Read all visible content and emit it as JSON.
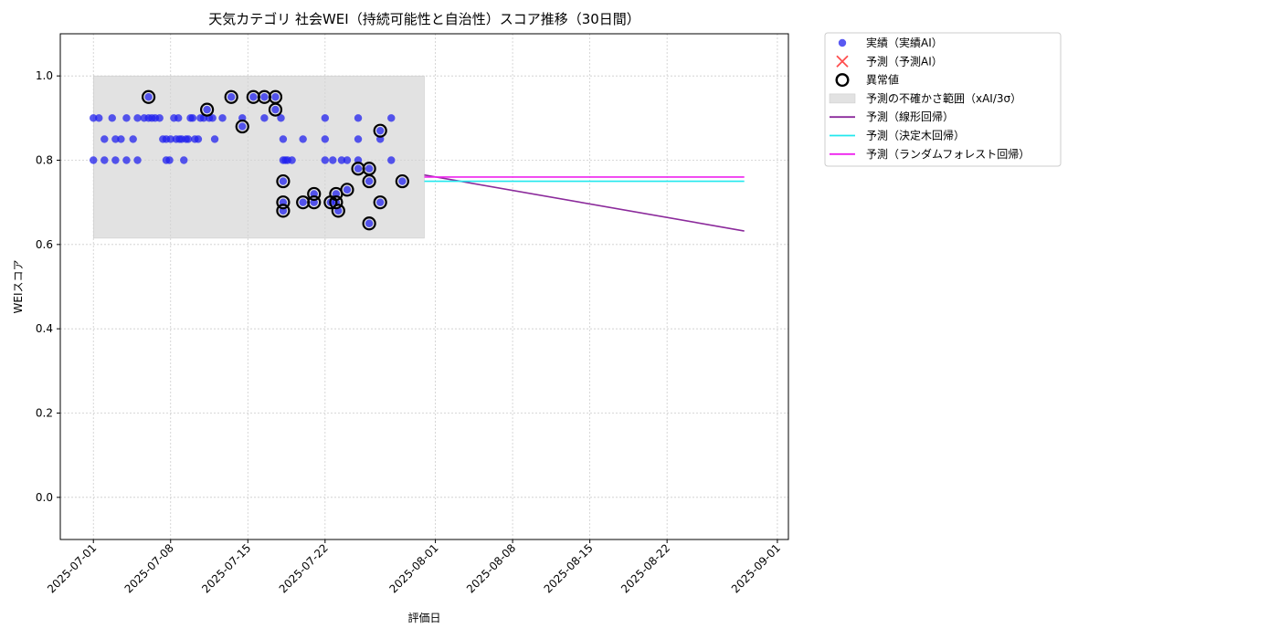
{
  "chart_data": {
    "type": "scatter",
    "title": "天気カテゴリ 社会WEI（持続可能性と自治性）スコア推移（30日間）",
    "xlabel": "評価日",
    "ylabel": "WEIスコア",
    "xlim": [
      "2025-06-28",
      "2025-09-02"
    ],
    "ylim": [
      -0.1,
      1.1
    ],
    "grid": true,
    "legend_position": "outside-right",
    "xticks": [
      "2025-07-01",
      "2025-07-08",
      "2025-07-15",
      "2025-07-22",
      "2025-08-01",
      "2025-08-08",
      "2025-08-15",
      "2025-08-22",
      "2025-09-01"
    ],
    "yticks": [
      0.0,
      0.2,
      0.4,
      0.6,
      0.8,
      1.0
    ],
    "uncertainty_band": {
      "x_start": "2025-07-01",
      "x_end": "2025-07-31",
      "y_low": 0.615,
      "y_high": 1.0,
      "color": "#d3d3d3"
    },
    "series": [
      {
        "name": "実績（実績AI）",
        "type": "scatter",
        "color": "#2222ee",
        "points": [
          [
            "2025-07-01",
            0.8
          ],
          [
            "2025-07-01",
            0.9
          ],
          [
            "2025-07-01.5",
            0.9
          ],
          [
            "2025-07-02",
            0.85
          ],
          [
            "2025-07-02",
            0.8
          ],
          [
            "2025-07-02.7",
            0.9
          ],
          [
            "2025-07-03",
            0.8
          ],
          [
            "2025-07-03",
            0.85
          ],
          [
            "2025-07-03.5",
            0.85
          ],
          [
            "2025-07-04",
            0.9
          ],
          [
            "2025-07-04",
            0.8
          ],
          [
            "2025-07-04.6",
            0.85
          ],
          [
            "2025-07-05",
            0.8
          ],
          [
            "2025-07-05",
            0.9
          ],
          [
            "2025-07-05.6",
            0.9
          ],
          [
            "2025-07-06",
            0.9
          ],
          [
            "2025-07-06",
            0.95
          ],
          [
            "2025-07-06.3",
            0.9
          ],
          [
            "2025-07-06.6",
            0.9
          ],
          [
            "2025-07-07",
            0.9
          ],
          [
            "2025-07-07.3",
            0.85
          ],
          [
            "2025-07-07.6",
            0.85
          ],
          [
            "2025-07-07.6",
            0.8
          ],
          [
            "2025-07-07.9",
            0.8
          ],
          [
            "2025-07-08",
            0.85
          ],
          [
            "2025-07-08.3",
            0.9
          ],
          [
            "2025-07-08.5",
            0.85
          ],
          [
            "2025-07-08.7",
            0.9
          ],
          [
            "2025-07-08.8",
            0.85
          ],
          [
            "2025-07-09",
            0.85
          ],
          [
            "2025-07-09.2",
            0.8
          ],
          [
            "2025-07-09.4",
            0.85
          ],
          [
            "2025-07-09.6",
            0.85
          ],
          [
            "2025-07-09.8",
            0.9
          ],
          [
            "2025-07-10",
            0.9
          ],
          [
            "2025-07-10.2",
            0.85
          ],
          [
            "2025-07-10.5",
            0.85
          ],
          [
            "2025-07-10.7",
            0.9
          ],
          [
            "2025-07-11",
            0.9
          ],
          [
            "2025-07-11.3",
            0.92
          ],
          [
            "2025-07-11.5",
            0.9
          ],
          [
            "2025-07-11.8",
            0.9
          ],
          [
            "2025-07-12",
            0.85
          ],
          [
            "2025-07-12.7",
            0.9
          ],
          [
            "2025-07-13.5",
            0.95
          ],
          [
            "2025-07-14.5",
            0.9
          ],
          [
            "2025-07-14.5",
            0.88
          ],
          [
            "2025-07-15.5",
            0.95
          ],
          [
            "2025-07-16.5",
            0.95
          ],
          [
            "2025-07-16.5",
            0.9
          ],
          [
            "2025-07-17.5",
            0.95
          ],
          [
            "2025-07-17.5",
            0.92
          ],
          [
            "2025-07-18",
            0.9
          ],
          [
            "2025-07-18.2",
            0.8
          ],
          [
            "2025-07-18.2",
            0.85
          ],
          [
            "2025-07-18.2",
            0.75
          ],
          [
            "2025-07-18.2",
            0.7
          ],
          [
            "2025-07-18.2",
            0.68
          ],
          [
            "2025-07-18.4",
            0.8
          ],
          [
            "2025-07-18.6",
            0.8
          ],
          [
            "2025-07-19",
            0.8
          ],
          [
            "2025-07-20",
            0.85
          ],
          [
            "2025-07-20",
            0.7
          ],
          [
            "2025-07-21",
            0.72
          ],
          [
            "2025-07-21",
            0.7
          ],
          [
            "2025-07-22",
            0.9
          ],
          [
            "2025-07-22",
            0.85
          ],
          [
            "2025-07-22",
            0.8
          ],
          [
            "2025-07-22.5",
            0.7
          ],
          [
            "2025-07-22.7",
            0.8
          ],
          [
            "2025-07-23",
            0.72
          ],
          [
            "2025-07-23",
            0.7
          ],
          [
            "2025-07-23.2",
            0.68
          ],
          [
            "2025-07-23.5",
            0.8
          ],
          [
            "2025-07-24",
            0.8
          ],
          [
            "2025-07-24",
            0.73
          ],
          [
            "2025-07-25",
            0.8
          ],
          [
            "2025-07-25",
            0.78
          ],
          [
            "2025-07-25",
            0.85
          ],
          [
            "2025-07-25",
            0.9
          ],
          [
            "2025-07-26",
            0.75
          ],
          [
            "2025-07-26",
            0.78
          ],
          [
            "2025-07-26",
            0.65
          ],
          [
            "2025-07-27",
            0.85
          ],
          [
            "2025-07-27",
            0.87
          ],
          [
            "2025-07-27",
            0.7
          ],
          [
            "2025-07-28",
            0.8
          ],
          [
            "2025-07-28",
            0.9
          ],
          [
            "2025-07-29",
            0.75
          ]
        ]
      },
      {
        "name": "予測（予測AI）",
        "type": "scatter",
        "color": "#ff2222",
        "points": []
      },
      {
        "name": "異常値",
        "type": "scatter",
        "color": "#000000",
        "points": [
          [
            "2025-07-06",
            0.95
          ],
          [
            "2025-07-11.3",
            0.92
          ],
          [
            "2025-07-13.5",
            0.95
          ],
          [
            "2025-07-14.5",
            0.88
          ],
          [
            "2025-07-15.5",
            0.95
          ],
          [
            "2025-07-16.5",
            0.95
          ],
          [
            "2025-07-17.5",
            0.95
          ],
          [
            "2025-07-17.5",
            0.92
          ],
          [
            "2025-07-18.2",
            0.75
          ],
          [
            "2025-07-18.2",
            0.7
          ],
          [
            "2025-07-18.2",
            0.68
          ],
          [
            "2025-07-20",
            0.7
          ],
          [
            "2025-07-21",
            0.72
          ],
          [
            "2025-07-21",
            0.7
          ],
          [
            "2025-07-22.5",
            0.7
          ],
          [
            "2025-07-23",
            0.72
          ],
          [
            "2025-07-23",
            0.7
          ],
          [
            "2025-07-23.2",
            0.68
          ],
          [
            "2025-07-24",
            0.73
          ],
          [
            "2025-07-25",
            0.78
          ],
          [
            "2025-07-26",
            0.75
          ],
          [
            "2025-07-26",
            0.78
          ],
          [
            "2025-07-26",
            0.65
          ],
          [
            "2025-07-27",
            0.87
          ],
          [
            "2025-07-27",
            0.7
          ],
          [
            "2025-07-29",
            0.75
          ]
        ]
      },
      {
        "name": "予測の不確かさ範囲（xAI/3σ）",
        "type": "band",
        "color": "#d3d3d3"
      },
      {
        "name": "予測（線形回帰）",
        "type": "line",
        "color": "#8b2a9b",
        "points": [
          [
            "2025-07-31",
            0.765
          ],
          [
            "2025-08-29",
            0.632
          ]
        ]
      },
      {
        "name": "予測（決定木回帰）",
        "type": "line",
        "color": "#22e8ee",
        "points": [
          [
            "2025-07-31",
            0.75
          ],
          [
            "2025-08-29",
            0.75
          ]
        ]
      },
      {
        "name": "予測（ランダムフォレスト回帰）",
        "type": "line",
        "color": "#ee22ee",
        "points": [
          [
            "2025-07-31",
            0.76
          ],
          [
            "2025-08-29",
            0.76
          ]
        ]
      }
    ]
  }
}
